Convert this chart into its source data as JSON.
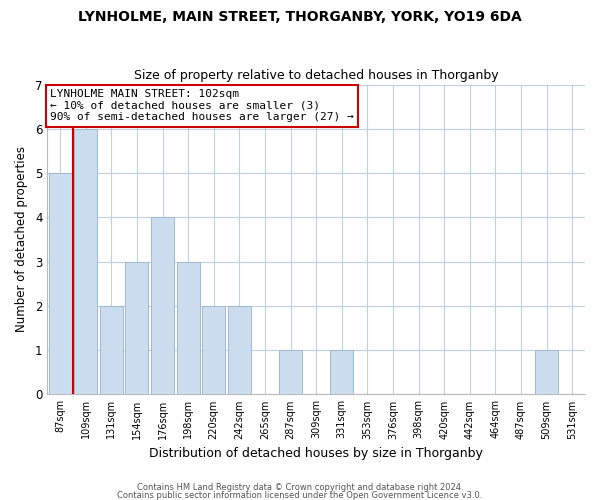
{
  "title": "LYNHOLME, MAIN STREET, THORGANBY, YORK, YO19 6DA",
  "subtitle": "Size of property relative to detached houses in Thorganby",
  "xlabel": "Distribution of detached houses by size in Thorganby",
  "ylabel": "Number of detached properties",
  "bin_labels": [
    "87sqm",
    "109sqm",
    "131sqm",
    "154sqm",
    "176sqm",
    "198sqm",
    "220sqm",
    "242sqm",
    "265sqm",
    "287sqm",
    "309sqm",
    "331sqm",
    "353sqm",
    "376sqm",
    "398sqm",
    "420sqm",
    "442sqm",
    "464sqm",
    "487sqm",
    "509sqm",
    "531sqm"
  ],
  "bar_values": [
    5,
    6,
    2,
    3,
    4,
    3,
    2,
    2,
    0,
    1,
    0,
    1,
    0,
    0,
    0,
    0,
    0,
    0,
    0,
    1,
    0
  ],
  "bar_color": "#ccddef",
  "bar_edge_color": "#a0b8d0",
  "highlight_line_color": "#cc0000",
  "ylim": [
    0,
    7
  ],
  "yticks": [
    0,
    1,
    2,
    3,
    4,
    5,
    6,
    7
  ],
  "annotation_title": "LYNHOLME MAIN STREET: 102sqm",
  "annotation_line1": "← 10% of detached houses are smaller (3)",
  "annotation_line2": "90% of semi-detached houses are larger (27) →",
  "annotation_box_color": "#ffffff",
  "annotation_box_edge": "#cc0000",
  "footer_line1": "Contains HM Land Registry data © Crown copyright and database right 2024.",
  "footer_line2": "Contains public sector information licensed under the Open Government Licence v3.0.",
  "background_color": "#ffffff",
  "grid_color": "#c0d0e0"
}
